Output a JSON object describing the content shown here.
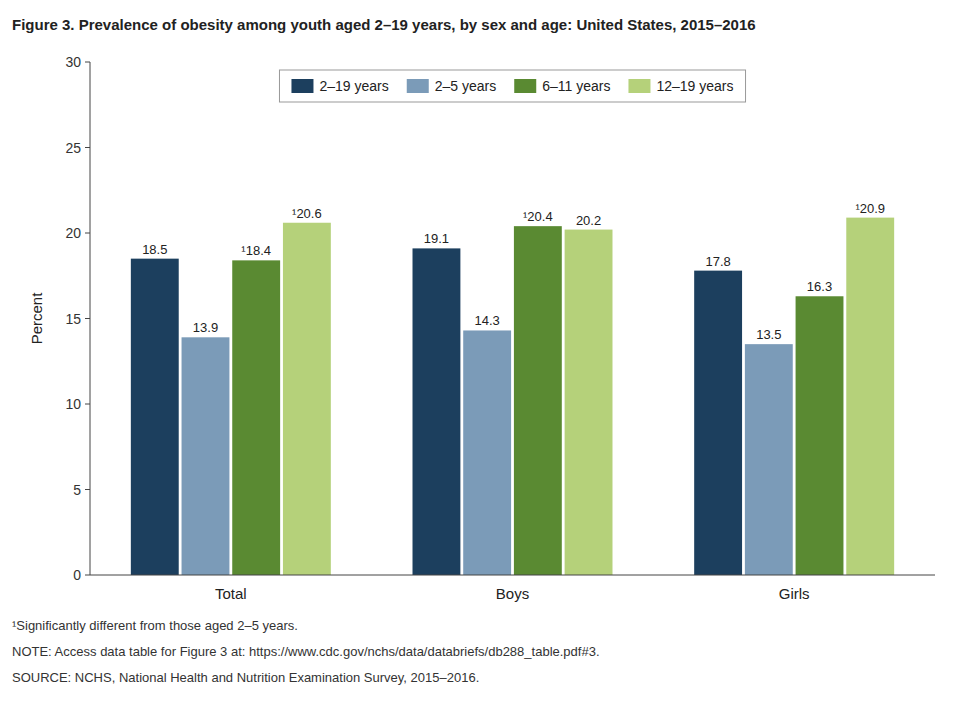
{
  "chart_data": {
    "type": "bar",
    "title": "Figure 3. Prevalence of obesity among youth aged 2–19 years, by sex and age: United States, 2015–2016",
    "categories": [
      "Total",
      "Boys",
      "Girls"
    ],
    "series": [
      {
        "name": "2–19 years",
        "color": "#1c3f5e",
        "values": [
          18.5,
          19.1,
          17.8
        ]
      },
      {
        "name": "2–5 years",
        "color": "#7b9bb8",
        "values": [
          13.9,
          14.3,
          13.5
        ]
      },
      {
        "name": "6–11 years",
        "color": "#5a8a32",
        "values": [
          18.4,
          20.4,
          16.3
        ],
        "value_labels": [
          "¹18.4",
          "¹20.4",
          "16.3"
        ]
      },
      {
        "name": "12–19 years",
        "color": "#b5d17a",
        "values": [
          20.6,
          20.2,
          20.9
        ],
        "value_labels": [
          "¹20.6",
          "20.2",
          "¹20.9"
        ]
      }
    ],
    "ylabel": "Percent",
    "ylim": [
      0,
      30
    ],
    "yticks": [
      0,
      5,
      10,
      15,
      20,
      25,
      30
    ],
    "grid": false,
    "legend": "top",
    "data_labels": true,
    "footnotes": [
      "¹Significantly different from those aged 2–5 years.",
      "NOTE: Access data table for Figure 3 at: https://www.cdc.gov/nchs/data/databriefs/db288_table.pdf#3.",
      "SOURCE: NCHS, National Health and Nutrition Examination Survey, 2015–2016."
    ]
  }
}
